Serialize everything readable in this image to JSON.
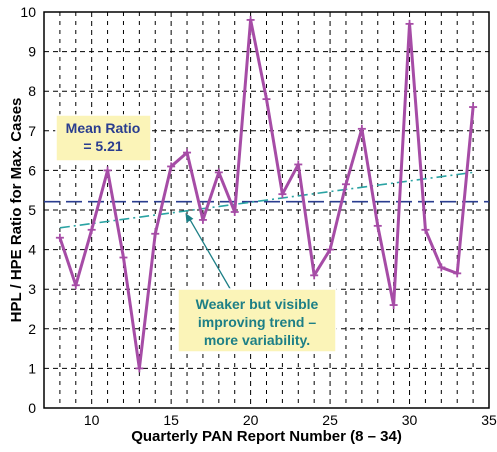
{
  "chart_data": {
    "type": "line",
    "title": "",
    "xlabel": "Quarterly PAN Report Number (8 – 34)",
    "ylabel": "HPL / HPE Ratio for Max. Cases",
    "xlim": [
      7,
      35
    ],
    "ylim": [
      0,
      10
    ],
    "x_ticks": [
      10,
      15,
      20,
      25,
      30,
      35
    ],
    "y_ticks": [
      0,
      1,
      2,
      3,
      4,
      5,
      6,
      7,
      8,
      9,
      10
    ],
    "grid": true,
    "legend": "none",
    "series": [
      {
        "x": [
          8,
          9,
          10,
          11,
          12,
          13,
          14,
          15,
          16,
          17,
          18,
          19,
          20,
          21,
          22,
          23,
          24,
          25,
          26,
          27,
          28,
          29,
          30,
          31,
          32,
          33,
          34
        ],
        "y": [
          4.3,
          3.1,
          4.5,
          6.0,
          3.8,
          1.0,
          4.4,
          6.1,
          6.45,
          4.75,
          5.95,
          4.95,
          9.8,
          7.8,
          5.4,
          6.15,
          3.35,
          4.0,
          5.65,
          7.05,
          4.6,
          2.6,
          9.7,
          4.5,
          3.55,
          3.4,
          7.6
        ],
        "color": "#a64ca6",
        "marker": "plus"
      }
    ],
    "mean_line": {
      "y": 5.21,
      "color": "#2a3d8f"
    },
    "trend_line": {
      "x": [
        8,
        34
      ],
      "y": [
        4.55,
        5.95
      ],
      "color": "#2aa3a3"
    },
    "annotations": [
      {
        "text": [
          "Mean Ratio",
          "= 5.21"
        ],
        "text_color": "#2a3d8f",
        "box_color": "#fbf4b8"
      },
      {
        "text": [
          "Weaker but visible",
          "improving trend –",
          "more variability."
        ],
        "text_color": "#1d7f86",
        "box_color": "#fbf4b8"
      }
    ]
  }
}
